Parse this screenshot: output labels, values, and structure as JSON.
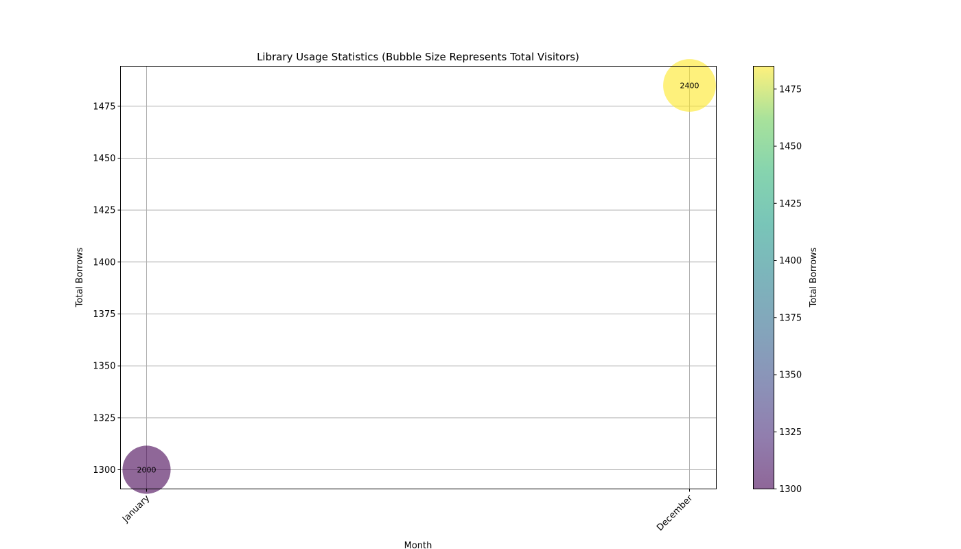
{
  "chart_data": {
    "type": "scatter",
    "title": "Library Usage Statistics (Bubble Size Represents Total Visitors)",
    "xlabel": "Month",
    "ylabel": "Total Borrows",
    "categories": [
      "January",
      "December"
    ],
    "x": [
      "January",
      "December"
    ],
    "y": [
      1300,
      1485
    ],
    "bubble_size": [
      2000,
      2400
    ],
    "bubble_labels": [
      "2000",
      "2400"
    ],
    "ylim": [
      1290.75,
      1494.25
    ],
    "yticks": [
      1300,
      1325,
      1350,
      1375,
      1400,
      1425,
      1450,
      1475
    ],
    "grid": true,
    "colorbar": {
      "label": "Total Borrows",
      "range": [
        1300,
        1485
      ],
      "ticks": [
        1300,
        1325,
        1350,
        1375,
        1400,
        1425,
        1450,
        1475
      ],
      "colormap": "viridis",
      "alpha": 0.6
    }
  }
}
